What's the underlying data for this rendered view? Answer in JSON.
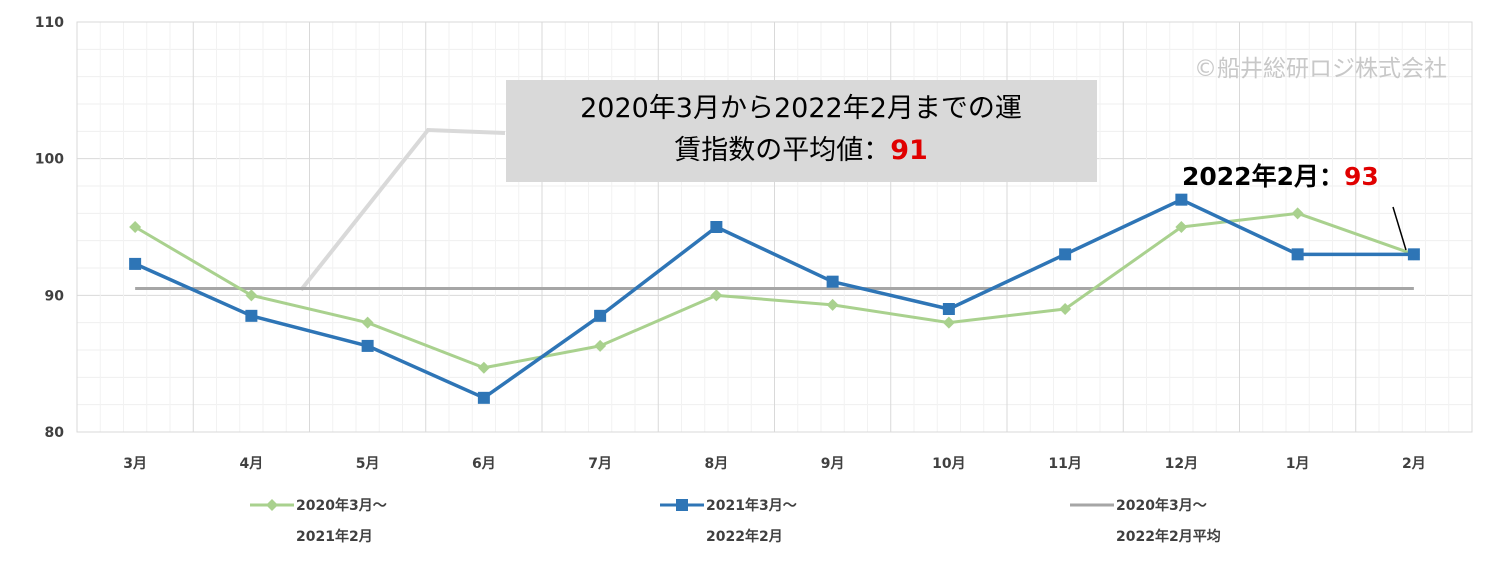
{
  "chart_data": {
    "type": "line",
    "categories": [
      "3月",
      "4月",
      "5月",
      "6月",
      "7月",
      "8月",
      "9月",
      "10月",
      "11月",
      "12月",
      "1月",
      "2月"
    ],
    "series": [
      {
        "name_line1": "2020年3月～",
        "name_line2": "2021年2月",
        "color": "#a9d18e",
        "marker": "diamond",
        "values": [
          95,
          90,
          88,
          84.7,
          86.3,
          90,
          89.3,
          88,
          89,
          95,
          96,
          93
        ]
      },
      {
        "name_line1": "2021年3月～",
        "name_line2": "2022年2月",
        "color": "#2e75b6",
        "marker": "square",
        "values": [
          92.3,
          88.5,
          86.3,
          82.5,
          88.5,
          95,
          91,
          89,
          93,
          97,
          93,
          93
        ]
      },
      {
        "name_line1": "2020年3月～",
        "name_line2": "2022年2月平均",
        "color": "#a6a6a6",
        "marker": "none",
        "values": [
          90.5,
          90.5,
          90.5,
          90.5,
          90.5,
          90.5,
          90.5,
          90.5,
          90.5,
          90.5,
          90.5,
          90.5
        ]
      }
    ],
    "y_ticks": [
      "80",
      "90",
      "100",
      "110"
    ],
    "ylim": [
      80,
      110
    ],
    "grid": true,
    "legend_placement": "bottom",
    "callout": {
      "line1": "2020年3月から2022年2月までの運",
      "line2_prefix": "賃指数の平均値：",
      "line2_value": "91"
    },
    "annotation": {
      "prefix": "2022年2月：",
      "value": "93"
    },
    "watermark": "©船井総研ロジ株式会社"
  }
}
